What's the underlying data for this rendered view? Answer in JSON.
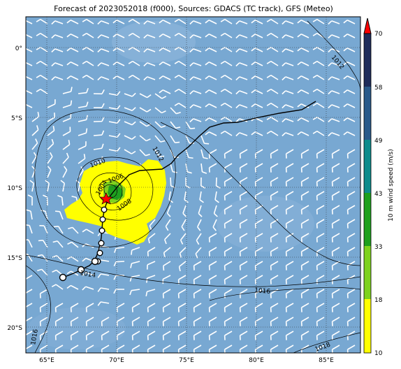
{
  "title": "Forecast of 2023052018 (f000), Sources: GDACS (TC track), GFS (Meteo)",
  "colors": {
    "ocean": "#78a8d2",
    "yellow": "#ffff00",
    "lightgreen": "#7fd21e",
    "green": "#1ea01e",
    "teal": "#0e8c8c",
    "blue": "#2a5a8a",
    "navy": "#1e2c5a",
    "red": "#ff0000"
  },
  "axes": {
    "lon_ticks": [
      "65°E",
      "70°E",
      "75°E",
      "80°E",
      "85°E"
    ],
    "lat_ticks": [
      "0°",
      "5°S",
      "10°S",
      "15°S",
      "20°S"
    ]
  },
  "colorbar": {
    "label": "10 m wind speed (m/s)",
    "levels": [
      "10",
      "18",
      "33",
      "43",
      "49",
      "58",
      "70"
    ]
  },
  "isobars": {
    "labels": [
      "1012",
      "1010",
      "1012",
      "1006",
      "1004",
      "1008",
      "1014",
      "1016",
      "1016",
      "1018"
    ]
  },
  "storm_marker": "red-star"
}
